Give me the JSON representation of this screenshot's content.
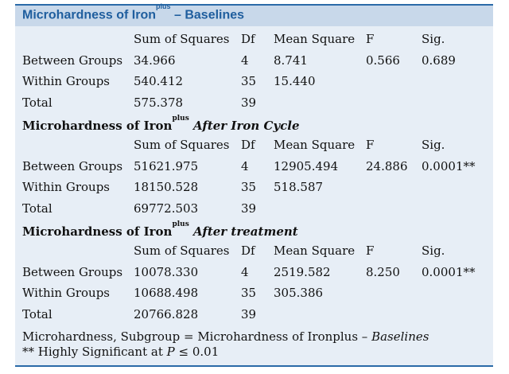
{
  "title": {
    "prefix": "Microhardness of Iron",
    "sup": "plus",
    "suffix": " – Baselines"
  },
  "headers": [
    "Sum of Squares",
    "Df",
    "Mean Square",
    "F",
    "Sig."
  ],
  "sections": [
    {
      "heading": null,
      "rows": [
        {
          "label": "Between Groups",
          "ss": "34.966",
          "df": "4",
          "ms": "8.741",
          "f": "0.566",
          "sig": "0.689"
        },
        {
          "label": "Within Groups",
          "ss": "540.412",
          "df": "35",
          "ms": "15.440",
          "f": "",
          "sig": ""
        },
        {
          "label": "Total",
          "ss": "575.378",
          "df": "39",
          "ms": "",
          "f": "",
          "sig": ""
        }
      ]
    },
    {
      "heading": {
        "prefix": "Microhardness of Iron",
        "sup": "plus",
        "suffix": "After Iron Cycle"
      },
      "rows": [
        {
          "label": "Between Groups",
          "ss": "51621.975",
          "df": "4",
          "ms": "12905.494",
          "f": "24.886",
          "sig": "0.0001**"
        },
        {
          "label": "Within Groups",
          "ss": "18150.528",
          "df": "35",
          "ms": "518.587",
          "f": "",
          "sig": ""
        },
        {
          "label": "Total",
          "ss": "69772.503",
          "df": "39",
          "ms": "",
          "f": "",
          "sig": ""
        }
      ]
    },
    {
      "heading": {
        "prefix": "Microhardness of Iron",
        "sup": "plus",
        "suffix": "After treatment"
      },
      "rows": [
        {
          "label": "Between Groups",
          "ss": "10078.330",
          "df": "4",
          "ms": "2519.582",
          "f": "8.250",
          "sig": "0.0001**"
        },
        {
          "label": "Within Groups",
          "ss": "10688.498",
          "df": "35",
          "ms": "305.386",
          "f": "",
          "sig": ""
        },
        {
          "label": "Total",
          "ss": "20766.828",
          "df": "39",
          "ms": "",
          "f": "",
          "sig": ""
        }
      ]
    }
  ],
  "footnotes": {
    "line1_prefix": "Microhardness, Subgroup = Microhardness of Ironplus – ",
    "line1_italic": "Baselines",
    "line2_prefix": "** Highly Significant at ",
    "line2_italic": "P",
    "line2_suffix": " ≤ 0.01"
  },
  "colors": {
    "title": "#1f5e9e",
    "rule": "#2a6aa8",
    "background": "#e7eef6",
    "title_band": "#c8d8ea"
  }
}
